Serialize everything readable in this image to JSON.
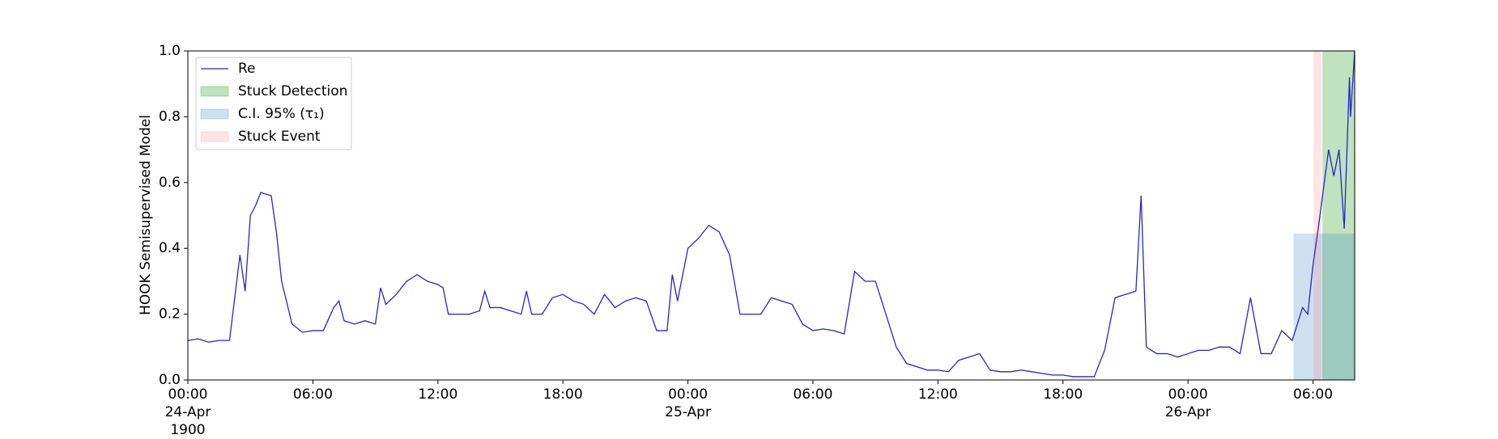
{
  "chart_data": {
    "type": "line",
    "ylabel": "HOOK Semisupervised Model",
    "xlim": [
      "1900-04-24 00:00",
      "1900-04-26 08:00"
    ],
    "ylim": [
      0,
      1
    ],
    "yticks": [
      {
        "value": 0,
        "label": "0.0"
      },
      {
        "value": 0.2,
        "label": "0.2"
      },
      {
        "value": 0.4,
        "label": "0.4"
      },
      {
        "value": 0.6,
        "label": "0.6"
      },
      {
        "value": 0.8,
        "label": "0.8"
      },
      {
        "value": 1,
        "label": "1.0"
      }
    ],
    "xticks": [
      {
        "value": "1900-04-24 00:00",
        "label": "00:00\n24-Apr\n1900"
      },
      {
        "value": "1900-04-24 06:00",
        "label": "06:00"
      },
      {
        "value": "1900-04-24 12:00",
        "label": "12:00"
      },
      {
        "value": "1900-04-24 18:00",
        "label": "18:00"
      },
      {
        "value": "1900-04-25 00:00",
        "label": "00:00\n25-Apr"
      },
      {
        "value": "1900-04-25 06:00",
        "label": "06:00"
      },
      {
        "value": "1900-04-25 12:00",
        "label": "12:00"
      },
      {
        "value": "1900-04-25 18:00",
        "label": "18:00"
      },
      {
        "value": "1900-04-26 00:00",
        "label": "00:00\n26-Apr"
      },
      {
        "value": "1900-04-26 06:00",
        "label": "06:00"
      }
    ],
    "legend": "upper left",
    "x": [
      "1900-04-24 00:00",
      "1900-04-24 00:30",
      "1900-04-24 01:00",
      "1900-04-24 01:30",
      "1900-04-24 02:00",
      "1900-04-24 02:15",
      "1900-04-24 02:30",
      "1900-04-24 02:45",
      "1900-04-24 03:00",
      "1900-04-24 03:15",
      "1900-04-24 03:30",
      "1900-04-24 04:00",
      "1900-04-24 04:15",
      "1900-04-24 04:30",
      "1900-04-24 05:00",
      "1900-04-24 05:30",
      "1900-04-24 06:00",
      "1900-04-24 06:30",
      "1900-04-24 07:00",
      "1900-04-24 07:15",
      "1900-04-24 07:30",
      "1900-04-24 08:00",
      "1900-04-24 08:30",
      "1900-04-24 09:00",
      "1900-04-24 09:15",
      "1900-04-24 09:30",
      "1900-04-24 10:00",
      "1900-04-24 10:30",
      "1900-04-24 11:00",
      "1900-04-24 11:30",
      "1900-04-24 12:00",
      "1900-04-24 12:15",
      "1900-04-24 12:30",
      "1900-04-24 13:00",
      "1900-04-24 13:30",
      "1900-04-24 14:00",
      "1900-04-24 14:15",
      "1900-04-24 14:30",
      "1900-04-24 15:00",
      "1900-04-24 15:30",
      "1900-04-24 16:00",
      "1900-04-24 16:15",
      "1900-04-24 16:30",
      "1900-04-24 17:00",
      "1900-04-24 17:30",
      "1900-04-24 18:00",
      "1900-04-24 18:30",
      "1900-04-24 19:00",
      "1900-04-24 19:30",
      "1900-04-24 20:00",
      "1900-04-24 20:30",
      "1900-04-24 21:00",
      "1900-04-24 21:30",
      "1900-04-24 22:00",
      "1900-04-24 22:30",
      "1900-04-24 23:00",
      "1900-04-24 23:15",
      "1900-04-24 23:30",
      "1900-04-25 00:00",
      "1900-04-25 00:30",
      "1900-04-25 01:00",
      "1900-04-25 01:30",
      "1900-04-25 02:00",
      "1900-04-25 02:30",
      "1900-04-25 03:00",
      "1900-04-25 03:30",
      "1900-04-25 04:00",
      "1900-04-25 04:30",
      "1900-04-25 05:00",
      "1900-04-25 05:30",
      "1900-04-25 06:00",
      "1900-04-25 06:30",
      "1900-04-25 07:00",
      "1900-04-25 07:30",
      "1900-04-25 08:00",
      "1900-04-25 08:30",
      "1900-04-25 09:00",
      "1900-04-25 09:30",
      "1900-04-25 10:00",
      "1900-04-25 10:30",
      "1900-04-25 11:00",
      "1900-04-25 11:30",
      "1900-04-25 12:00",
      "1900-04-25 12:30",
      "1900-04-25 13:00",
      "1900-04-25 13:30",
      "1900-04-25 14:00",
      "1900-04-25 14:30",
      "1900-04-25 15:00",
      "1900-04-25 15:30",
      "1900-04-25 16:00",
      "1900-04-25 16:30",
      "1900-04-25 17:00",
      "1900-04-25 17:30",
      "1900-04-25 18:00",
      "1900-04-25 18:30",
      "1900-04-25 19:00",
      "1900-04-25 19:30",
      "1900-04-25 20:00",
      "1900-04-25 20:30",
      "1900-04-25 21:00",
      "1900-04-25 21:30",
      "1900-04-25 21:45",
      "1900-04-25 22:00",
      "1900-04-25 22:30",
      "1900-04-25 23:00",
      "1900-04-25 23:30",
      "1900-04-26 00:00",
      "1900-04-26 00:30",
      "1900-04-26 01:00",
      "1900-04-26 01:30",
      "1900-04-26 02:00",
      "1900-04-26 02:30",
      "1900-04-26 03:00",
      "1900-04-26 03:30",
      "1900-04-26 04:00",
      "1900-04-26 04:30",
      "1900-04-26 05:00",
      "1900-04-26 05:30",
      "1900-04-26 05:45",
      "1900-04-26 06:00",
      "1900-04-26 06:15",
      "1900-04-26 06:30",
      "1900-04-26 06:45",
      "1900-04-26 07:00",
      "1900-04-26 07:15",
      "1900-04-26 07:30",
      "1900-04-26 07:45",
      "1900-04-26 07:48",
      "1900-04-26 08:00"
    ],
    "series": [
      {
        "name": "Re",
        "color": "#2626c8",
        "values": [
          0.12,
          0.125,
          0.115,
          0.12,
          0.12,
          0.25,
          0.38,
          0.27,
          0.5,
          0.53,
          0.57,
          0.56,
          0.45,
          0.3,
          0.17,
          0.145,
          0.15,
          0.15,
          0.22,
          0.24,
          0.18,
          0.17,
          0.18,
          0.17,
          0.28,
          0.23,
          0.26,
          0.3,
          0.32,
          0.3,
          0.29,
          0.28,
          0.2,
          0.2,
          0.2,
          0.21,
          0.27,
          0.22,
          0.22,
          0.21,
          0.2,
          0.27,
          0.2,
          0.2,
          0.25,
          0.26,
          0.24,
          0.23,
          0.2,
          0.26,
          0.22,
          0.24,
          0.25,
          0.24,
          0.15,
          0.15,
          0.32,
          0.24,
          0.4,
          0.43,
          0.47,
          0.45,
          0.38,
          0.2,
          0.2,
          0.2,
          0.25,
          0.24,
          0.23,
          0.17,
          0.15,
          0.155,
          0.15,
          0.14,
          0.33,
          0.3,
          0.3,
          0.2,
          0.1,
          0.05,
          0.04,
          0.03,
          0.03,
          0.025,
          0.06,
          0.07,
          0.08,
          0.03,
          0.025,
          0.025,
          0.03,
          0.025,
          0.02,
          0.015,
          0.015,
          0.01,
          0.01,
          0.01,
          0.09,
          0.25,
          0.26,
          0.27,
          0.56,
          0.1,
          0.08,
          0.08,
          0.07,
          0.08,
          0.09,
          0.09,
          0.1,
          0.1,
          0.08,
          0.25,
          0.08,
          0.08,
          0.15,
          0.12,
          0.22,
          0.2,
          0.35,
          0.46,
          0.58,
          0.7,
          0.62,
          0.7,
          0.46,
          0.92,
          0.8,
          1.0
        ]
      }
    ],
    "spans": [
      {
        "name": "Stuck Detection",
        "color": "#2ca02c",
        "opacity": 0.3,
        "start": "1900-04-26 06:27",
        "end": "1900-04-26 08:00"
      },
      {
        "name": "C.I. 95% (τ₁)",
        "color": "#1f77b4",
        "opacity": 0.22,
        "start": "1900-04-26 05:04",
        "end": "1900-04-26 08:00",
        "ymax": 0.445
      },
      {
        "name": "Stuck Event",
        "color": "#ff6b6b",
        "opacity": 0.18,
        "start": "1900-04-26 06:02",
        "end": "1900-04-26 06:24"
      }
    ]
  }
}
